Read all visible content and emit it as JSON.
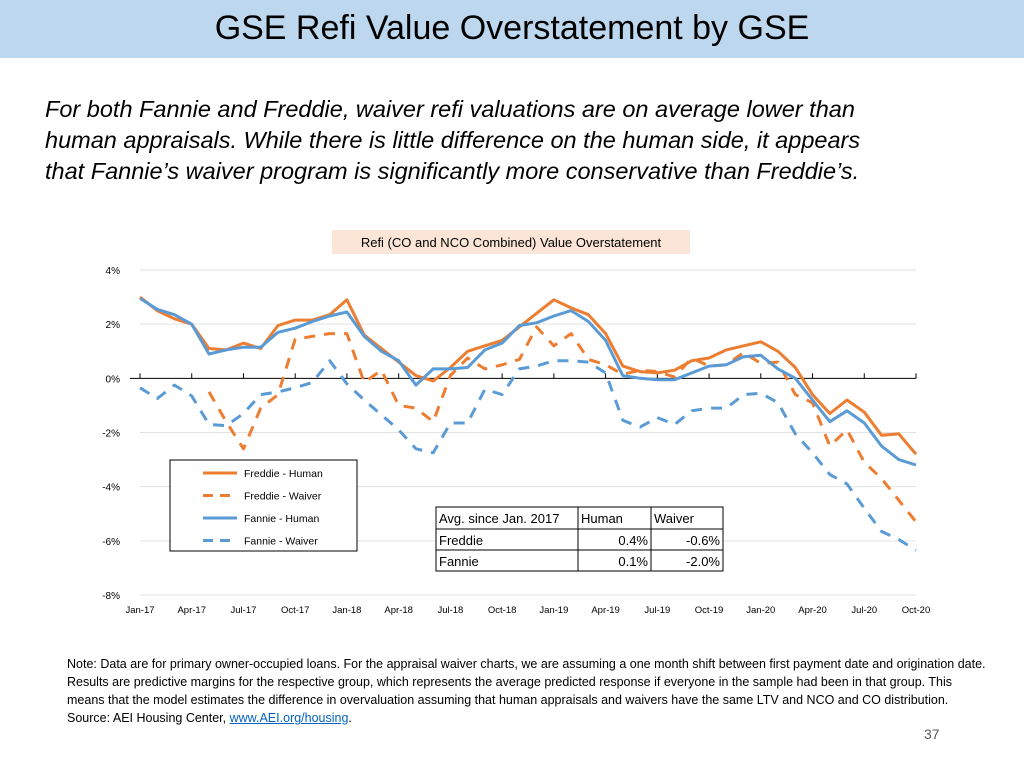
{
  "slide": {
    "title": "GSE Refi Value Overstatement by GSE",
    "intro_lines": [
      "For both Fannie and Freddie, waiver refi valuations are on average lower than",
      "human appraisals. While there is little difference on the human side, it appears",
      "that Fannie’s waiver program is significantly more conservative than Freddie’s."
    ],
    "note_text": "Note: Data are for primary owner-occupied loans. For the appraisal waiver charts, we are assuming a one month shift between first payment date and origination date. Results are predictive margins for the respective group, which represents the average predicted response if everyone in the sample had been in that group. This means that the model estimates the difference in overvaluation assuming that human appraisals and waivers have the same LTV and NCO and CO distribution.",
    "source_prefix": "Source: AEI Housing Center, ",
    "source_link": "www.AEI.org/housing",
    "source_suffix": ".",
    "page_number": "37"
  },
  "colors": {
    "title_bar": "#bdd7ee",
    "orange": "#ed7d31",
    "blue": "#5b9bd5",
    "chart_title_bg": "#fbe5d6"
  },
  "chart_data": {
    "type": "line",
    "title": "Refi (CO and NCO Combined) Value Overstatement",
    "xlabel": "",
    "ylabel": "",
    "ylim": [
      -8,
      4
    ],
    "y_ticks": [
      4,
      2,
      0,
      -2,
      -4,
      -6,
      -8
    ],
    "y_tick_labels": [
      "4%",
      "2%",
      "0%",
      "-2%",
      "-4%",
      "-6%",
      "-8%"
    ],
    "x_tick_labels": [
      "Jan-17",
      "Apr-17",
      "Jul-17",
      "Oct-17",
      "Jan-18",
      "Apr-18",
      "Jul-18",
      "Oct-18",
      "Jan-19",
      "Apr-19",
      "Jul-19",
      "Oct-19",
      "Jan-20",
      "Apr-20",
      "Jul-20",
      "Oct-20"
    ],
    "x_tick_months": [
      0,
      3,
      6,
      9,
      12,
      15,
      18,
      21,
      24,
      27,
      30,
      33,
      36,
      39,
      42,
      45
    ],
    "n_months": 46,
    "series": [
      {
        "name": "Freddie - Human",
        "color": "#ed7d31",
        "style": "solid",
        "values": [
          3.0,
          2.5,
          2.2,
          2.0,
          1.1,
          1.05,
          1.3,
          1.1,
          1.95,
          2.15,
          2.15,
          2.35,
          2.9,
          1.6,
          1.1,
          0.6,
          0.1,
          -0.1,
          0.4,
          1.0,
          1.2,
          1.4,
          1.9,
          2.4,
          2.9,
          2.6,
          2.35,
          1.65,
          0.45,
          0.25,
          0.2,
          0.3,
          0.65,
          0.75,
          1.05,
          1.2,
          1.35,
          1.0,
          0.4,
          -0.6,
          -1.3,
          -0.8,
          -1.25,
          -2.1,
          -2.05,
          -2.8
        ]
      },
      {
        "name": "Freddie - Waiver",
        "color": "#ed7d31",
        "style": "dashed",
        "values": [
          null,
          null,
          null,
          null,
          -0.5,
          -1.6,
          -2.6,
          -1.1,
          -0.6,
          1.45,
          1.55,
          1.65,
          1.65,
          -0.15,
          0.3,
          -1.0,
          -1.1,
          -1.6,
          0.1,
          0.75,
          0.35,
          0.5,
          0.7,
          1.9,
          1.2,
          1.65,
          0.7,
          0.5,
          0.15,
          0.3,
          0.25,
          0.05,
          0.75,
          0.45,
          0.5,
          0.95,
          0.55,
          0.6,
          -0.6,
          -0.9,
          -2.5,
          -1.9,
          -3.1,
          -3.7,
          -4.5,
          -5.3
        ]
      },
      {
        "name": "Fannie - Human",
        "color": "#5b9bd5",
        "style": "solid",
        "values": [
          2.95,
          2.55,
          2.35,
          2.0,
          0.9,
          1.05,
          1.15,
          1.15,
          1.7,
          1.85,
          2.1,
          2.3,
          2.45,
          1.55,
          1.0,
          0.65,
          -0.25,
          0.35,
          0.35,
          0.4,
          1.05,
          1.3,
          1.95,
          2.05,
          2.3,
          2.5,
          2.1,
          1.4,
          0.1,
          0.0,
          -0.05,
          -0.05,
          0.2,
          0.45,
          0.5,
          0.8,
          0.85,
          0.35,
          0.0,
          -0.8,
          -1.6,
          -1.2,
          -1.65,
          -2.5,
          -3.0,
          -3.2
        ]
      },
      {
        "name": "Fannie - Waiver",
        "color": "#5b9bd5",
        "style": "dashed",
        "values": [
          -0.35,
          -0.75,
          -0.25,
          -0.65,
          -1.7,
          -1.75,
          -1.3,
          -0.6,
          -0.5,
          -0.35,
          -0.15,
          0.65,
          -0.2,
          -0.8,
          -1.35,
          -1.9,
          -2.6,
          -2.75,
          -1.65,
          -1.65,
          -0.4,
          -0.6,
          0.35,
          0.45,
          0.65,
          0.65,
          0.6,
          0.2,
          -1.55,
          -1.8,
          -1.45,
          -1.7,
          -1.2,
          -1.1,
          -1.1,
          -0.6,
          -0.55,
          -0.9,
          -2.05,
          -2.75,
          -3.55,
          -3.9,
          -4.8,
          -5.65,
          -5.95,
          -6.35
        ]
      }
    ],
    "legend_position": "lower-left inside plot",
    "table": {
      "headers": [
        "Avg. since Jan. 2017",
        "Human",
        "Waiver"
      ],
      "rows": [
        [
          "Freddie",
          "0.4%",
          "-0.6%"
        ],
        [
          "Fannie",
          "0.1%",
          "-2.0%"
        ]
      ]
    }
  }
}
